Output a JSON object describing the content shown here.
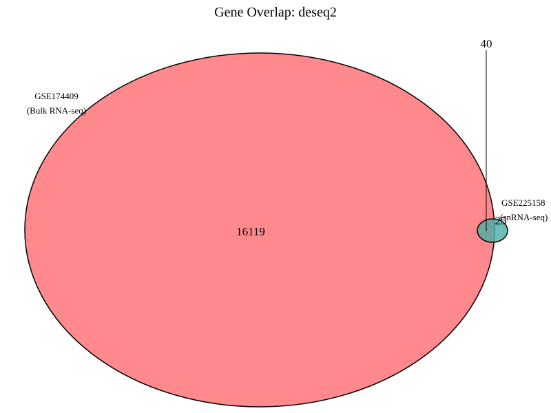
{
  "title": "Gene Overlap: deseq2",
  "sets": [
    {
      "name": "GSE174409",
      "subtitle": "(Bulk RNA-seq)",
      "color": "#ff6b6f",
      "only_count": "16119"
    },
    {
      "name": "GSE225158",
      "subtitle": "(snRNA-seq)",
      "color": "#4aaea8",
      "only_count": "25"
    }
  ],
  "overlap_count": "40"
}
